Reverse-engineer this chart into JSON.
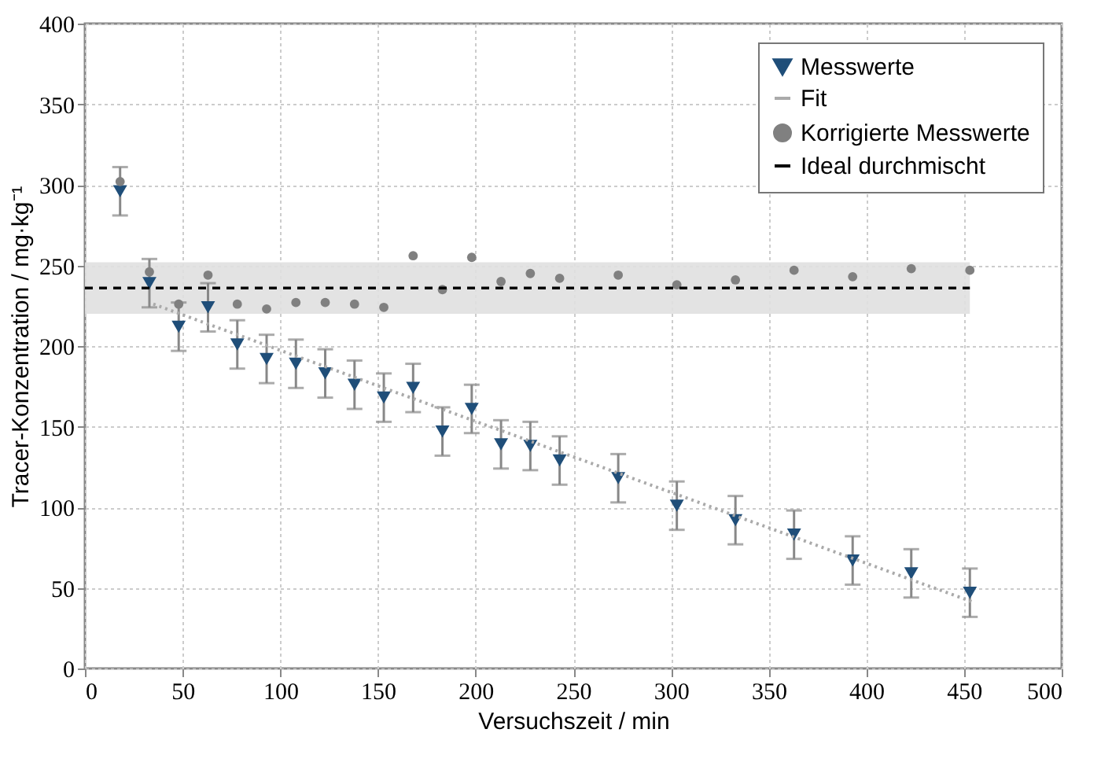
{
  "chart_data": {
    "type": "scatter",
    "xlabel": "Versuchszeit  / min",
    "ylabel": "Tracer-Konzentration  / mg·kg⁻¹",
    "x": [
      18,
      33,
      48,
      63,
      78,
      93,
      108,
      123,
      138,
      153,
      168,
      183,
      198,
      213,
      228,
      243,
      273,
      303,
      333,
      363,
      393,
      423,
      453
    ],
    "series": [
      {
        "name": "Messwerte",
        "marker": "triangle",
        "color": "#1f4e79",
        "values": [
          296,
          239,
          212,
          224,
          201,
          192,
          189,
          183,
          176,
          168,
          174,
          147,
          161,
          139,
          138,
          129,
          118,
          101,
          92,
          83,
          67,
          59,
          47
        ],
        "errors": [
          15,
          15,
          15,
          15,
          15,
          15,
          15,
          15,
          15,
          15,
          15,
          15,
          15,
          15,
          15,
          15,
          15,
          15,
          15,
          15,
          15,
          15,
          15
        ]
      },
      {
        "name": "Fit",
        "type": "line",
        "line_style": "dotted",
        "color": "#aaaaaa",
        "x": [
          35,
          455
        ],
        "values": [
          226,
          41
        ]
      },
      {
        "name": "Korrigierte Messwerte",
        "marker": "circle",
        "color": "#808080",
        "values": [
          302,
          246,
          226,
          244,
          226,
          223,
          227,
          227,
          226,
          224,
          256,
          235,
          255,
          240,
          245,
          242,
          244,
          238,
          241,
          247,
          243,
          248,
          247
        ]
      }
    ],
    "ref_lines": [
      {
        "axis": "y",
        "value": 236,
        "label": "Ideal durchmischt",
        "line_style": "dashed",
        "color": "#000000"
      }
    ],
    "bands": [
      {
        "axis": "y",
        "from": 220,
        "to": 252,
        "color": "#e0e0e0"
      }
    ],
    "xlim": [
      0,
      500
    ],
    "xticks": [
      0,
      50,
      100,
      150,
      200,
      250,
      300,
      350,
      400,
      450,
      500
    ],
    "ylim": [
      0,
      400
    ],
    "yticks": [
      0,
      50,
      100,
      150,
      200,
      250,
      300,
      350,
      400
    ],
    "grid": true,
    "legend": "top right"
  }
}
